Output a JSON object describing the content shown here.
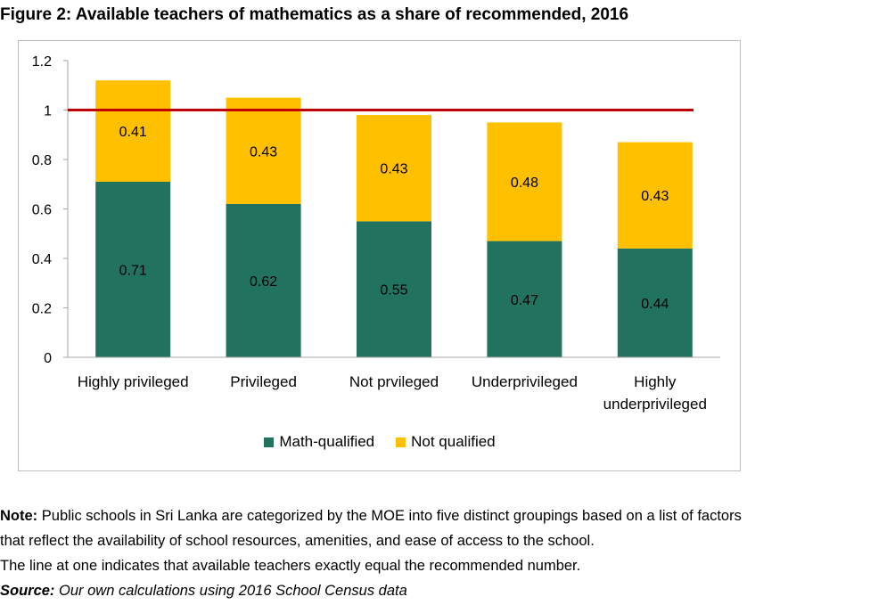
{
  "figure": {
    "title": "Figure 2: Available teachers of mathematics as a share of recommended, 2016"
  },
  "chart_data": {
    "type": "bar",
    "stacked": true,
    "categories": [
      [
        "Highly privileged"
      ],
      [
        "Privileged"
      ],
      [
        "Not prvileged"
      ],
      [
        "Underprivileged"
      ],
      [
        "Highly",
        "underprivileged"
      ]
    ],
    "series": [
      {
        "name": "Math-qualified",
        "color": "#217360",
        "values": [
          0.71,
          0.62,
          0.55,
          0.47,
          0.44
        ]
      },
      {
        "name": "Not qualified",
        "color": "#ffc000",
        "values": [
          0.41,
          0.43,
          0.43,
          0.48,
          0.43
        ]
      }
    ],
    "ylim": [
      0,
      1.2
    ],
    "yticks": [
      "0",
      "0.2",
      "0.4",
      "0.6",
      "0.8",
      "1",
      "1.2"
    ],
    "reference_line": {
      "value": 1,
      "color": "#c00000"
    },
    "legend": "bottom",
    "grid": false
  },
  "notes": {
    "note_label": "Note:",
    "note_text": " Public schools in Sri Lanka are categorized by the MOE into five distinct groupings based on a list of factors",
    "note_line2": "that reflect the availability of school resources, amenities, and ease of access to the school.",
    "note_line3": "The line at one indicates that available teachers exactly equal the recommended number.",
    "source_label": "Source:",
    "source_text": " Our own calculations using 2016 School Census data"
  }
}
